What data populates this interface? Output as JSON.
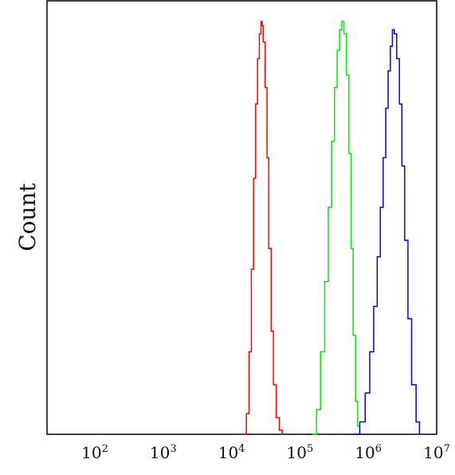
{
  "chart_data": {
    "type": "line",
    "title": "",
    "xlabel": "",
    "ylabel": "Count",
    "x_scale": "log",
    "xlim": [
      20,
      10000000
    ],
    "ylim": [
      0,
      1.05
    ],
    "x_ticks": [
      {
        "value": 100,
        "base": "10",
        "exp": "2"
      },
      {
        "value": 1000,
        "base": "10",
        "exp": "3"
      },
      {
        "value": 10000,
        "base": "10",
        "exp": "4"
      },
      {
        "value": 100000,
        "base": "10",
        "exp": "5"
      },
      {
        "value": 1000000,
        "base": "10",
        "exp": "6"
      },
      {
        "value": 10000000,
        "base": "10",
        "exp": "7"
      }
    ],
    "y_ticks": [],
    "grid": false,
    "legend": "none",
    "series": [
      {
        "color": "#ff0000",
        "x": [
          15000,
          16500,
          18000,
          19500,
          21000,
          22500,
          24000,
          25500,
          27000,
          28000,
          29000,
          31000,
          33000,
          35000,
          38000,
          41000,
          45000,
          50000,
          55000
        ],
        "y": [
          0.0,
          0.05,
          0.2,
          0.4,
          0.62,
          0.8,
          0.91,
          0.97,
          1.0,
          0.99,
          0.95,
          0.84,
          0.67,
          0.45,
          0.25,
          0.12,
          0.04,
          0.01,
          0.0
        ]
      },
      {
        "color": "#00ee00",
        "x": [
          150000,
          175000,
          200000,
          230000,
          260000,
          290000,
          320000,
          350000,
          380000,
          410000,
          440000,
          480000,
          520000,
          560000,
          600000,
          650000,
          700000,
          750000
        ],
        "y": [
          0.0,
          0.06,
          0.2,
          0.37,
          0.55,
          0.71,
          0.84,
          0.93,
          0.98,
          1.0,
          0.97,
          0.87,
          0.68,
          0.45,
          0.24,
          0.08,
          0.02,
          0.0
        ]
      },
      {
        "color": "#0000ee",
        "x": [
          600000,
          750000,
          900000,
          1050000,
          1200000,
          1350000,
          1500000,
          1650000,
          1800000,
          1950000,
          2100000,
          2250000,
          2400000,
          2600000,
          2850000,
          3100000,
          3400000,
          3800000,
          4300000,
          5000000,
          5600000
        ],
        "y": [
          0.0,
          0.03,
          0.1,
          0.2,
          0.31,
          0.43,
          0.55,
          0.67,
          0.79,
          0.88,
          0.94,
          0.98,
          0.97,
          0.91,
          0.8,
          0.65,
          0.47,
          0.28,
          0.12,
          0.03,
          0.0
        ]
      }
    ]
  }
}
